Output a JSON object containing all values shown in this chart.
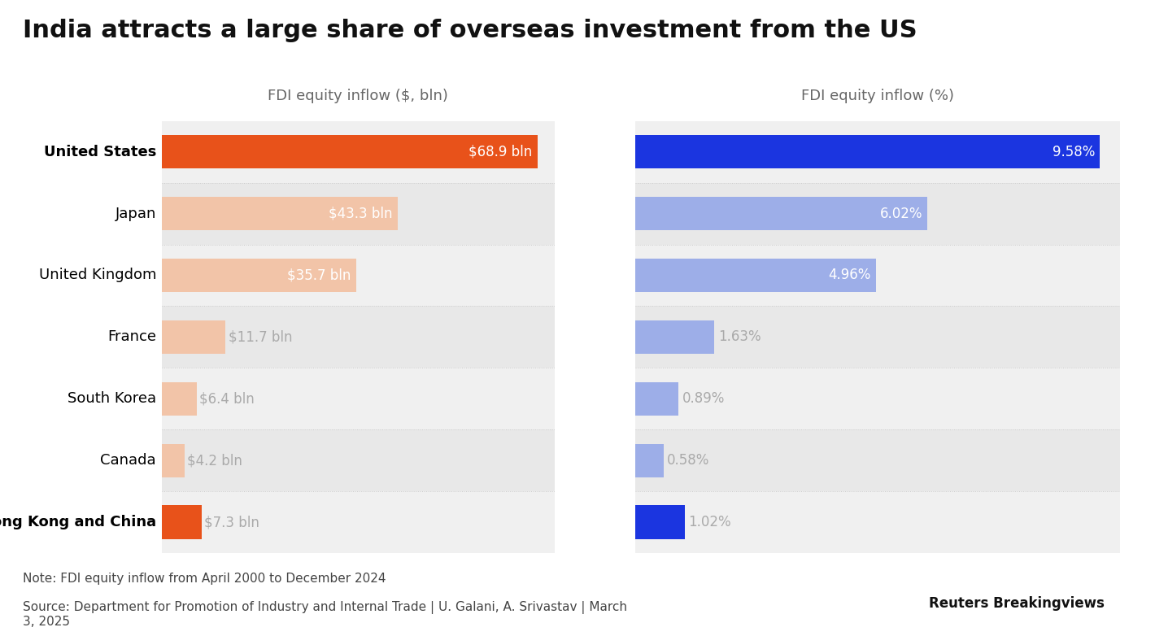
{
  "title": "India attracts a large share of overseas investment from the US",
  "col1_label": "FDI equity inflow ($, bln)",
  "col2_label": "FDI equity inflow (%)",
  "countries": [
    "United States",
    "Japan",
    "United Kingdom",
    "France",
    "South Korea",
    "Canada",
    "Hong Kong and China"
  ],
  "bold_rows": [
    0,
    6
  ],
  "values_bln": [
    68.9,
    43.3,
    35.7,
    11.7,
    6.4,
    4.2,
    7.3
  ],
  "values_pct": [
    9.58,
    6.02,
    4.96,
    1.63,
    0.89,
    0.58,
    1.02
  ],
  "labels_bln": [
    "$68.9 bln",
    "$43.3 bln",
    "$35.7 bln",
    "$11.7 bln",
    "$6.4 bln",
    "$4.2 bln",
    "$7.3 bln"
  ],
  "labels_pct": [
    "9.58%",
    "6.02%",
    "4.96%",
    "1.63%",
    "0.89%",
    "0.58%",
    "1.02%"
  ],
  "bar_colors_bln": [
    "#E8521A",
    "#F2C4A8",
    "#F2C4A8",
    "#F2C4A8",
    "#F2C4A8",
    "#F2C4A8",
    "#E8521A"
  ],
  "bar_colors_pct": [
    "#1B35E0",
    "#9DAEE8",
    "#9DAEE8",
    "#9DAEE8",
    "#9DAEE8",
    "#9DAEE8",
    "#1B35E0"
  ],
  "max_bln": 72,
  "max_pct": 10,
  "note": "Note: FDI equity inflow from April 2000 to December 2024",
  "source": "Source: Department for Promotion of Industry and Internal Trade | U. Galani, A. Srivastav | March\n3, 2025",
  "background_color": "#f5f5f5",
  "label_color_inside": "#ffffff",
  "label_color_outside": "#999999",
  "title_fontsize": 22,
  "axis_label_fontsize": 13,
  "bar_label_fontsize": 12,
  "country_fontsize": 13,
  "note_fontsize": 11
}
